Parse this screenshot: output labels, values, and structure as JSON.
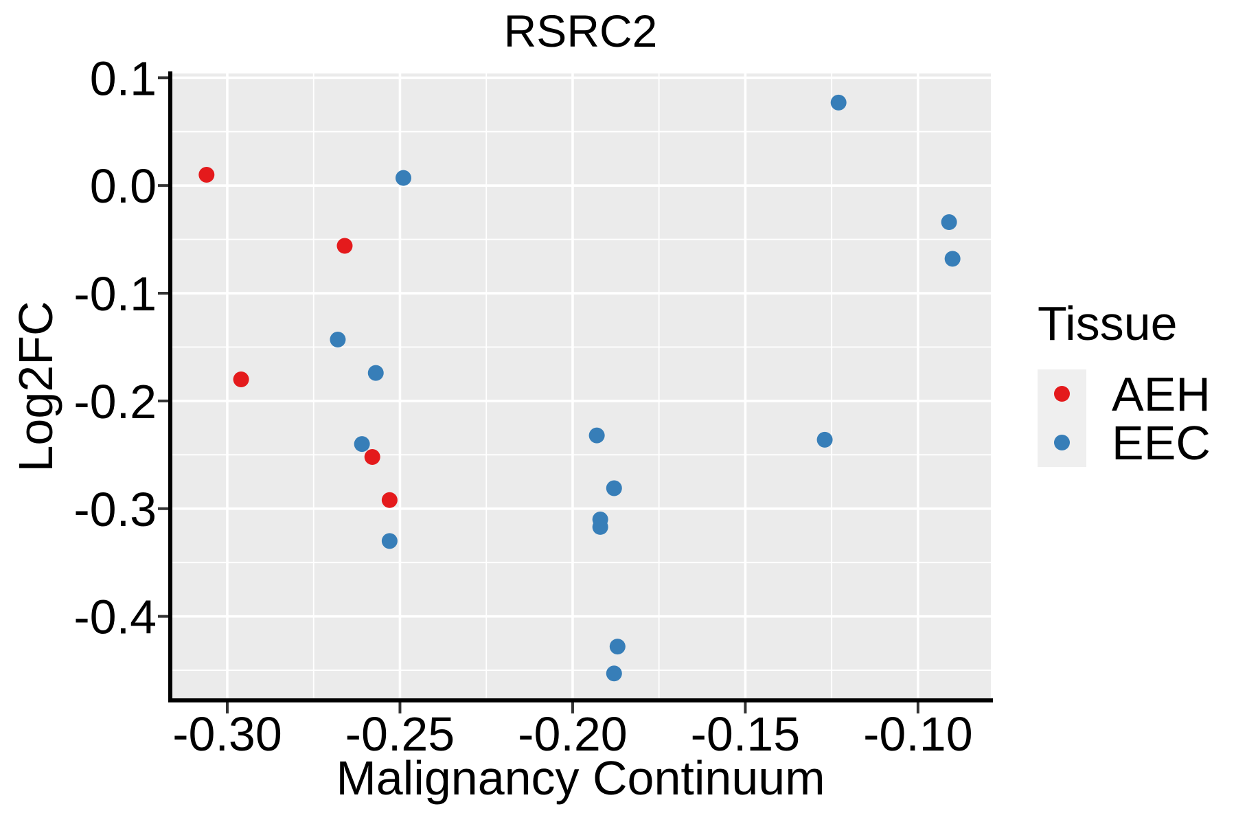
{
  "style": {
    "panel_bg": "#EBEBEB",
    "grid_color": "#FFFFFF",
    "axis_line_color": "#000000",
    "tick_color": "#333333",
    "text_color": "#000000",
    "legend_key_bg": "#EFEFEF",
    "aeh_color": "#E41A1C",
    "eec_color": "#377EB8"
  },
  "chart_data": {
    "type": "scatter",
    "title": "RSRC2",
    "xlabel": "Malignancy Continuum",
    "ylabel": "Log2FC",
    "xlim": [
      -0.3165,
      -0.0789
    ],
    "ylim": [
      -0.478,
      0.104
    ],
    "grid": "major and minor white gridlines on grey panel",
    "legend": {
      "title": "Tissue",
      "position": "right"
    },
    "x_ticks": {
      "values": [
        -0.3,
        -0.25,
        -0.2,
        -0.15,
        -0.1
      ],
      "labels": [
        "-0.30",
        "-0.25",
        "-0.20",
        "-0.15",
        "-0.10"
      ],
      "minor": [
        -0.275,
        -0.225,
        -0.175,
        -0.125
      ]
    },
    "y_ticks": {
      "values": [
        0.1,
        0.0,
        -0.1,
        -0.2,
        -0.3,
        -0.4
      ],
      "labels": [
        "0.1",
        "0.0",
        "-0.1",
        "-0.2",
        "-0.3",
        "-0.4"
      ],
      "minor": [
        0.05,
        -0.05,
        -0.15,
        -0.25,
        -0.35,
        -0.45
      ]
    },
    "series": [
      {
        "name": "AEH",
        "color": "#E41A1C",
        "points": [
          [
            -0.306,
            0.01
          ],
          [
            -0.296,
            -0.18
          ],
          [
            -0.266,
            -0.056
          ],
          [
            -0.258,
            -0.252
          ],
          [
            -0.253,
            -0.292
          ]
        ]
      },
      {
        "name": "EEC",
        "color": "#377EB8",
        "points": [
          [
            -0.268,
            -0.143
          ],
          [
            -0.261,
            -0.24
          ],
          [
            -0.257,
            -0.174
          ],
          [
            -0.253,
            -0.33
          ],
          [
            -0.249,
            0.007
          ],
          [
            -0.193,
            -0.232
          ],
          [
            -0.192,
            -0.31
          ],
          [
            -0.192,
            -0.317
          ],
          [
            -0.188,
            -0.281
          ],
          [
            -0.188,
            -0.453
          ],
          [
            -0.187,
            -0.428
          ],
          [
            -0.127,
            -0.236
          ],
          [
            -0.123,
            0.077
          ],
          [
            -0.091,
            -0.034
          ],
          [
            -0.09,
            -0.068
          ]
        ]
      }
    ]
  }
}
